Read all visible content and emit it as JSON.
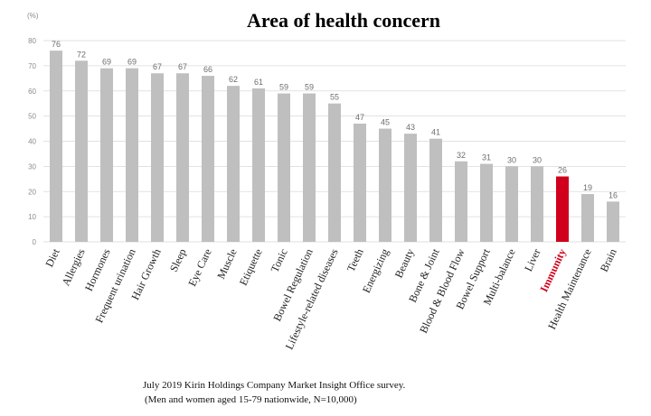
{
  "chart_data": {
    "type": "bar",
    "title": "Area of health concern",
    "unit_label": "(%)",
    "categories": [
      "Diet",
      "Allergies",
      "Hormones",
      "Frequent urination",
      "Hair Growth",
      "Sleep",
      "Eye Care",
      "Muscle",
      "Etiquette",
      "Tonic",
      "Bowel Regulation",
      "Lifestyle-related diseases",
      "Teeth",
      "Energizing",
      "Beauty",
      "Bone & Joint",
      "Blood & Blood Flow",
      "Bowel Support",
      "Multi-balance",
      "Liver",
      "Immunity",
      "Health Maintenance",
      "Brain"
    ],
    "values": [
      76,
      72,
      69,
      69,
      67,
      67,
      66,
      62,
      61,
      59,
      59,
      55,
      47,
      45,
      43,
      41,
      32,
      31,
      30,
      30,
      26,
      19,
      16
    ],
    "ylim": [
      0,
      80
    ],
    "yticks": [
      0,
      10,
      20,
      30,
      40,
      50,
      60,
      70,
      80
    ],
    "grid": true,
    "highlight": "Immunity",
    "colors": {
      "bar": "#bfbfbf",
      "highlight": "#d0001c",
      "grid": "#d9d9d9"
    }
  },
  "footnote": {
    "line1": "July 2019 Kirin Holdings Company Market Insight Office survey.",
    "line2": "(Men and women aged 15-79 nationwide, N=10,000)"
  }
}
